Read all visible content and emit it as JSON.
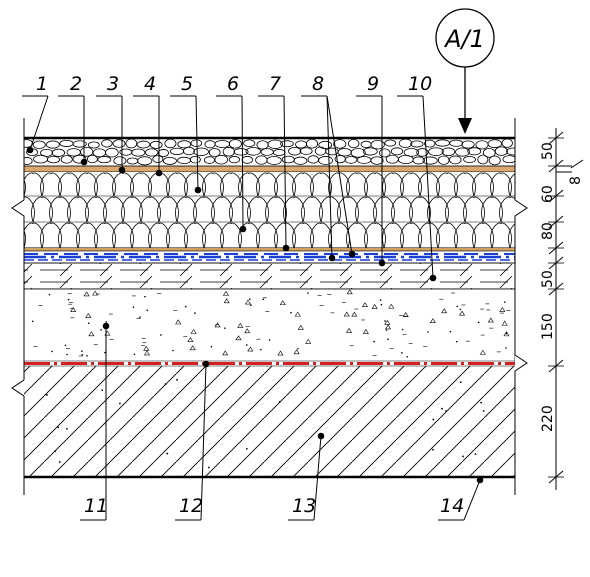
{
  "section_mark": "A/1",
  "top_labels": [
    "1",
    "2",
    "3",
    "4",
    "5",
    "6",
    "7",
    "8",
    "9",
    "10"
  ],
  "bottom_labels": [
    "11",
    "12",
    "13",
    "14"
  ],
  "dimensions": [
    "50",
    "60",
    "80",
    "50",
    "150",
    "220",
    "8"
  ],
  "colors": {
    "line": "#000000",
    "gravel_fill": "#ffffff",
    "membrane_tan": "#d9a870",
    "blue_layer": "#1a3fd6",
    "red_layer": "#d42020"
  }
}
